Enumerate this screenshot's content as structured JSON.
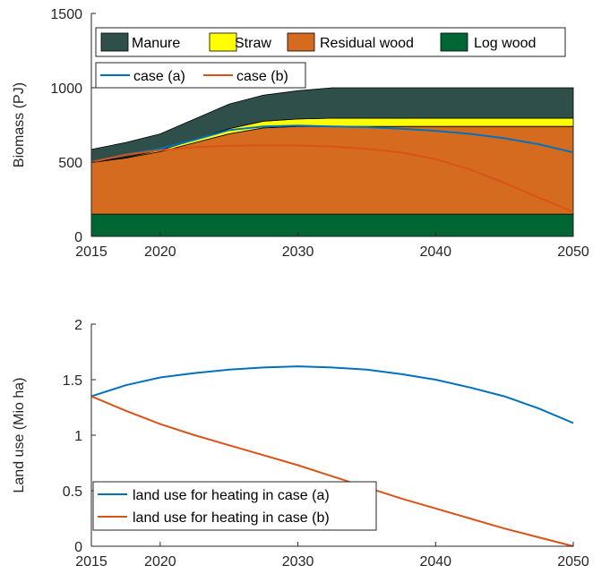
{
  "chart_data": [
    {
      "type": "area",
      "stacked": true,
      "title": "",
      "xlabel": "",
      "ylabel": "Biomass (PJ)",
      "xlim": [
        2015,
        2050
      ],
      "ylim": [
        0,
        1500
      ],
      "xticks": [
        2015,
        2020,
        2030,
        2040,
        2050
      ],
      "yticks": [
        0,
        500,
        1000,
        1500
      ],
      "x": [
        2015,
        2017.5,
        2020,
        2022.5,
        2025,
        2027.5,
        2030,
        2032.5,
        2035,
        2037.5,
        2040,
        2042.5,
        2045,
        2047.5,
        2050
      ],
      "series": [
        {
          "name": "Log wood",
          "color": "#006633",
          "values": [
            150,
            150,
            150,
            150,
            150,
            150,
            150,
            150,
            150,
            150,
            150,
            150,
            150,
            150,
            150
          ]
        },
        {
          "name": "Residual wood",
          "color": "#D56B1F",
          "values": [
            347,
            377,
            420,
            480,
            540,
            580,
            590,
            590,
            590,
            590,
            590,
            590,
            590,
            590,
            590
          ]
        },
        {
          "name": "Straw",
          "color": "#FFFF00",
          "values": [
            3,
            5,
            10,
            20,
            35,
            45,
            50,
            55,
            55,
            55,
            55,
            55,
            55,
            55,
            55
          ]
        },
        {
          "name": "Manure",
          "color": "#2F4F4B",
          "values": [
            85,
            100,
            110,
            140,
            165,
            175,
            190,
            205,
            205,
            205,
            205,
            205,
            205,
            205,
            205
          ]
        }
      ],
      "lines": [
        {
          "name": "case (a)",
          "color": "#0072BD",
          "values": [
            500,
            550,
            590,
            650,
            715,
            740,
            745,
            740,
            735,
            725,
            710,
            690,
            660,
            620,
            565
          ]
        },
        {
          "name": "case (b)",
          "color": "#D95319",
          "values": [
            500,
            550,
            580,
            600,
            610,
            612,
            612,
            605,
            590,
            565,
            520,
            450,
            360,
            260,
            165
          ]
        }
      ],
      "legend": {
        "placement": "top-left",
        "area_entries": [
          "Manure",
          "Straw",
          "Residual wood",
          "Log wood"
        ],
        "line_entries": [
          "case (a)",
          "case (b)"
        ]
      }
    },
    {
      "type": "line",
      "title": "",
      "xlabel": "",
      "ylabel": "Land use (Mio ha)",
      "xlim": [
        2015,
        2050
      ],
      "ylim": [
        0,
        2
      ],
      "xticks": [
        2015,
        2020,
        2030,
        2040,
        2050
      ],
      "yticks": [
        0,
        0.5,
        1,
        1.5,
        2
      ],
      "x": [
        2015,
        2017.5,
        2020,
        2022.5,
        2025,
        2027.5,
        2030,
        2032.5,
        2035,
        2037.5,
        2040,
        2042.5,
        2045,
        2047.5,
        2050
      ],
      "series": [
        {
          "name": "land use for heating in case (a)",
          "color": "#0072BD",
          "values": [
            1.35,
            1.45,
            1.52,
            1.56,
            1.59,
            1.61,
            1.62,
            1.61,
            1.59,
            1.55,
            1.5,
            1.43,
            1.35,
            1.24,
            1.11
          ]
        },
        {
          "name": "land use for heating in case (b)",
          "color": "#D95319",
          "values": [
            1.35,
            1.22,
            1.1,
            1.0,
            0.91,
            0.82,
            0.73,
            0.63,
            0.53,
            0.43,
            0.34,
            0.25,
            0.16,
            0.08,
            0.0
          ]
        }
      ],
      "legend": {
        "placement": "bottom-left"
      }
    }
  ]
}
